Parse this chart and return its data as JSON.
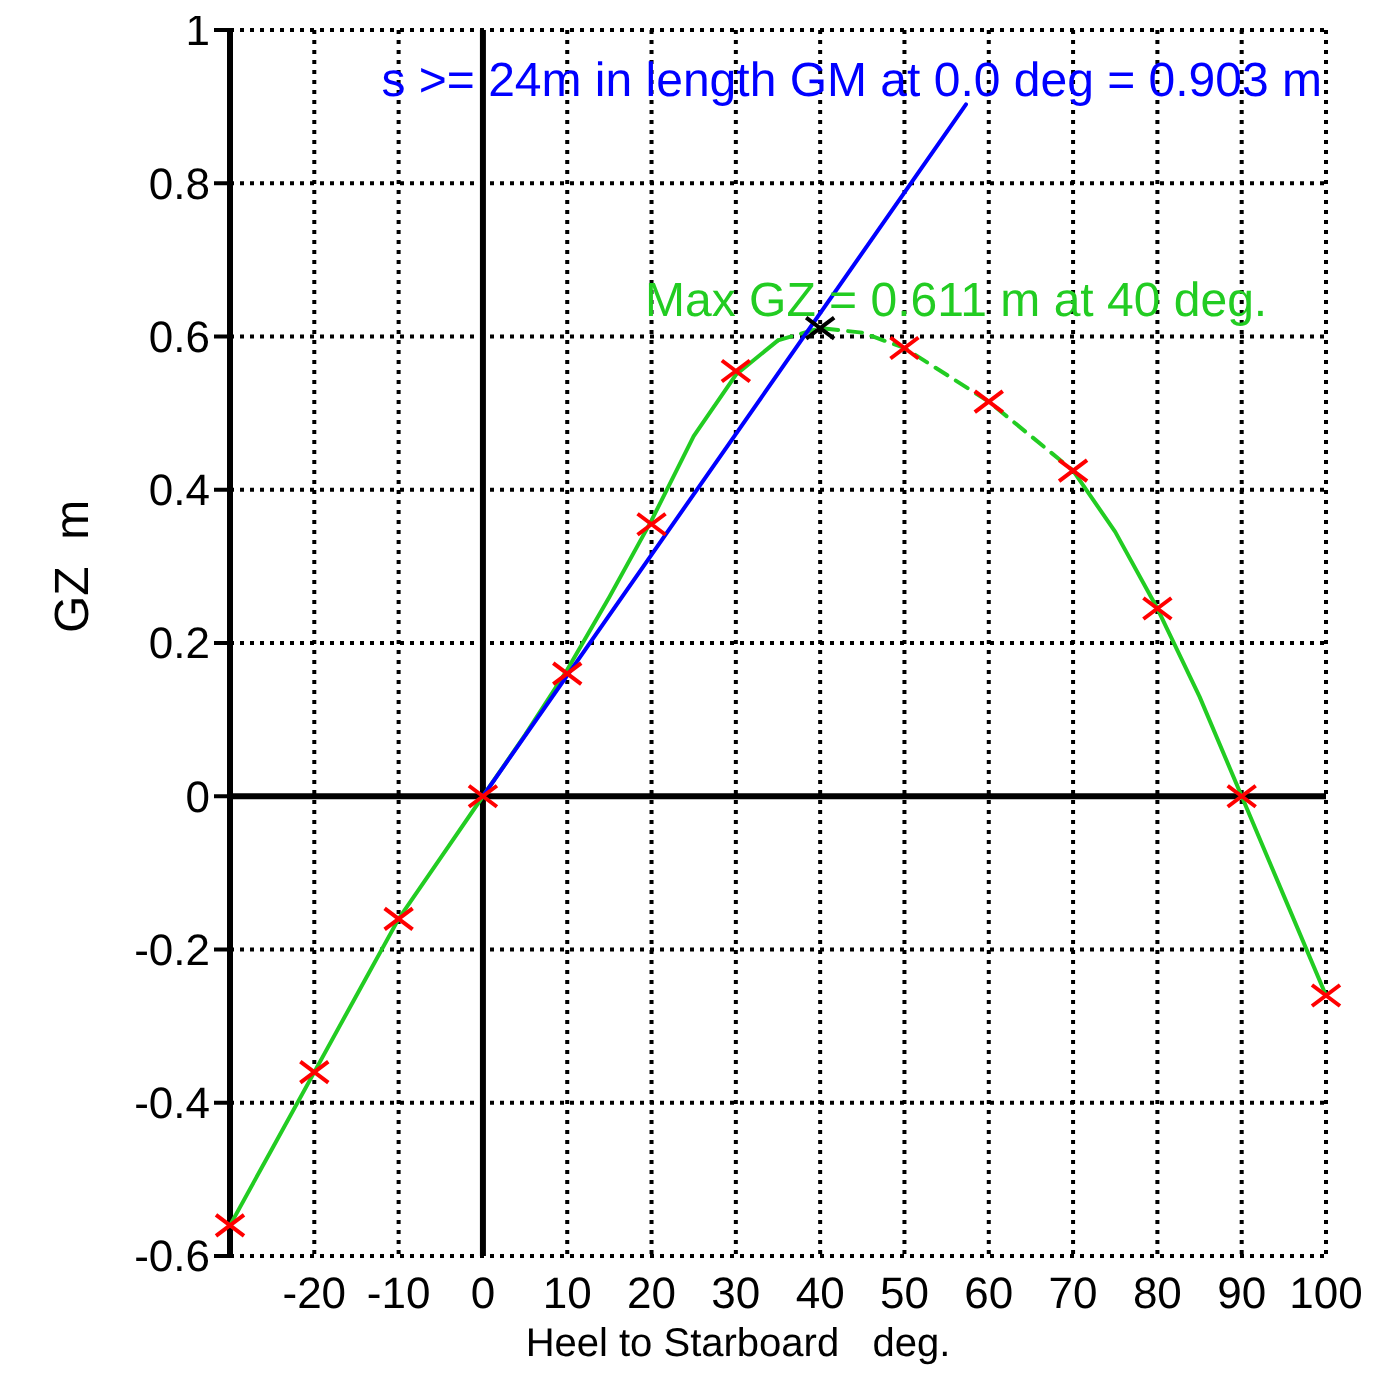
{
  "chart_data": {
    "type": "line",
    "xlabel": "Heel to Starboard   deg.",
    "ylabel": "GZ  m",
    "xlim": [
      -30,
      100
    ],
    "xticks": [
      {
        "value": -30,
        "label": null
      },
      -20,
      -10,
      0,
      10,
      20,
      30,
      40,
      50,
      60,
      70,
      80,
      90,
      100
    ],
    "ylim": [
      -0.6,
      1
    ],
    "yticks": [
      -0.6,
      -0.4,
      -0.2,
      0,
      0.2,
      0.4,
      0.6,
      0.8,
      1
    ],
    "grid": true,
    "series": [
      {
        "color": "#22cc22",
        "line_style": "solid",
        "marker": "none",
        "x": [
          -30,
          -25,
          -20,
          -15,
          -10,
          -5,
          0,
          5,
          10,
          15,
          20,
          25,
          30,
          35
        ],
        "values": [
          -0.56,
          -0.46,
          -0.36,
          -0.26,
          -0.16,
          -0.08,
          0,
          0.08,
          0.165,
          0.26,
          0.36,
          0.47,
          0.55,
          0.595
        ]
      },
      {
        "color": "#22cc22",
        "line_style": "dashed",
        "marker": "none",
        "x": [
          35,
          40,
          45,
          50,
          55,
          60,
          65,
          70
        ],
        "values": [
          0.595,
          0.611,
          0.605,
          0.585,
          0.55,
          0.515,
          0.47,
          0.425
        ]
      },
      {
        "color": "#22cc22",
        "line_style": "solid",
        "marker": "none",
        "x": [
          70,
          75,
          80,
          85,
          90,
          95,
          100
        ],
        "values": [
          0.425,
          0.345,
          0.245,
          0.13,
          0,
          -0.13,
          -0.26
        ]
      },
      {
        "color": "#0000ff",
        "line_style": "solid",
        "marker": "none",
        "x": [
          0,
          57.3
        ],
        "values": [
          0,
          0.903
        ]
      },
      {
        "type": "scatter",
        "color": "#ff0000",
        "marker": "cross",
        "x": [
          -30,
          -20,
          -10,
          0,
          10,
          20,
          30,
          50,
          60,
          70,
          80,
          90,
          100
        ],
        "values": [
          -0.56,
          -0.36,
          -0.16,
          0,
          0.16,
          0.355,
          0.555,
          0.585,
          0.515,
          0.425,
          0.245,
          0,
          -0.26
        ]
      },
      {
        "type": "scatter",
        "color": "#000000",
        "marker": "cross",
        "x": [
          40
        ],
        "values": [
          0.611
        ]
      }
    ],
    "annotations": [
      "s >= 24m in length GM at 0.0 deg = 0.903 m",
      {
        "text": "Max GZ = 0.611 m at 40 deg.",
        "x": 40,
        "y": 0.611
      }
    ]
  }
}
